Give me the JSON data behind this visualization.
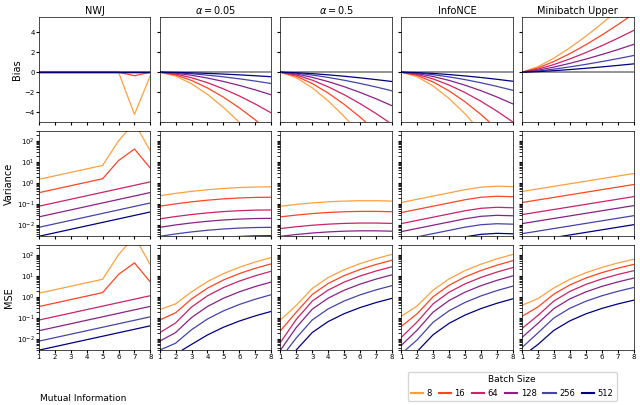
{
  "mi_values": [
    1,
    2,
    3,
    4,
    5,
    6,
    7,
    8
  ],
  "batch_sizes": [
    8,
    16,
    64,
    128,
    256,
    512
  ],
  "colors": [
    "#FFA040",
    "#FF4422",
    "#CC2266",
    "#882288",
    "#4444AA",
    "#000080"
  ],
  "col_titles": [
    "NWJ",
    "$\\alpha=0.05$",
    "$\\alpha=0.5$",
    "InfoNCE",
    "Minibatch Upper"
  ],
  "row_titles": [
    "Bias",
    "Variance",
    "MSE"
  ],
  "legend_title": "Batch Size",
  "xlabel": "Mutual Information",
  "bias_yticks": [
    -4,
    -2,
    0,
    2,
    4
  ],
  "bias_ylim": [
    -5,
    5.5
  ],
  "var_ylim_min": 0.003,
  "var_ylim_max": 300.0,
  "mse_ylim_min": 0.003,
  "mse_ylim_max": 300.0
}
